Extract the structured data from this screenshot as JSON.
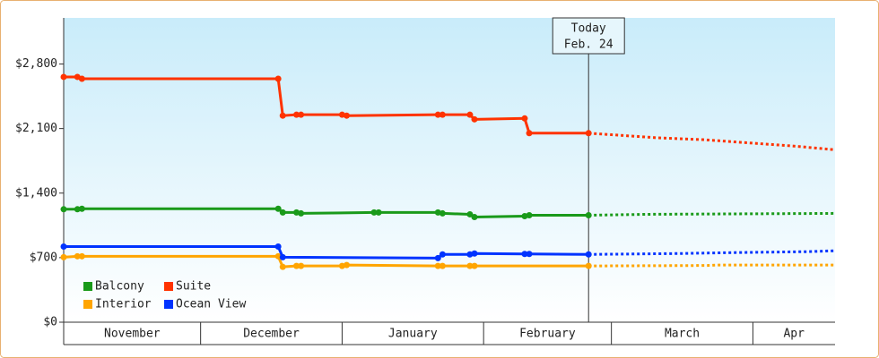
{
  "chart_data": {
    "type": "line",
    "xlim": [
      0,
      169
    ],
    "xticks": [
      {
        "value": 0,
        "label": "November"
      },
      {
        "value": 30,
        "label": "December"
      },
      {
        "value": 61,
        "label": "January"
      },
      {
        "value": 92,
        "label": "February"
      },
      {
        "value": 120,
        "label": "March"
      },
      {
        "value": 151,
        "label": "Apr"
      }
    ],
    "ylim": [
      0,
      3300
    ],
    "yticks": [
      {
        "value": 0,
        "label": "$0"
      },
      {
        "value": 700,
        "label": "$700"
      },
      {
        "value": 1400,
        "label": "$1,400"
      },
      {
        "value": 2100,
        "label": "$2,100"
      },
      {
        "value": 2800,
        "label": "$2,800"
      }
    ],
    "grid": false,
    "legend": "bottom-left",
    "annotation": {
      "x": 115,
      "lines": [
        "Today",
        "Feb. 24"
      ]
    },
    "series": [
      {
        "name": "Balcony",
        "color": "#1a9a1a",
        "x": [
          0,
          3,
          4,
          47,
          48,
          51,
          52,
          68,
          69,
          82,
          83,
          89,
          90,
          101,
          102,
          115,
          128,
          169
        ],
        "values": [
          1225,
          1225,
          1230,
          1230,
          1190,
          1190,
          1180,
          1190,
          1190,
          1190,
          1180,
          1170,
          1140,
          1150,
          1160,
          1160,
          1170,
          1180
        ]
      },
      {
        "name": "Suite",
        "color": "#ff3300",
        "x": [
          0,
          3,
          4,
          47,
          48,
          51,
          52,
          61,
          62,
          82,
          83,
          89,
          90,
          101,
          102,
          115,
          130,
          140,
          160,
          169
        ],
        "values": [
          2660,
          2660,
          2640,
          2640,
          2240,
          2250,
          2250,
          2250,
          2240,
          2250,
          2250,
          2250,
          2200,
          2210,
          2050,
          2050,
          2000,
          1980,
          1910,
          1870
        ]
      },
      {
        "name": "Interior",
        "color": "#ffa500",
        "x": [
          0,
          3,
          4,
          47,
          48,
          51,
          52,
          61,
          62,
          82,
          83,
          89,
          90,
          115,
          141,
          143,
          169
        ],
        "values": [
          705,
          715,
          715,
          715,
          600,
          610,
          610,
          610,
          620,
          610,
          610,
          610,
          610,
          610,
          615,
          620,
          620
        ]
      },
      {
        "name": "Ocean View",
        "color": "#0033ff",
        "x": [
          0,
          47,
          48,
          82,
          83,
          89,
          90,
          101,
          102,
          115,
          135,
          147,
          163,
          169
        ],
        "values": [
          820,
          820,
          705,
          695,
          735,
          735,
          745,
          740,
          740,
          735,
          745,
          755,
          765,
          775
        ]
      }
    ]
  }
}
